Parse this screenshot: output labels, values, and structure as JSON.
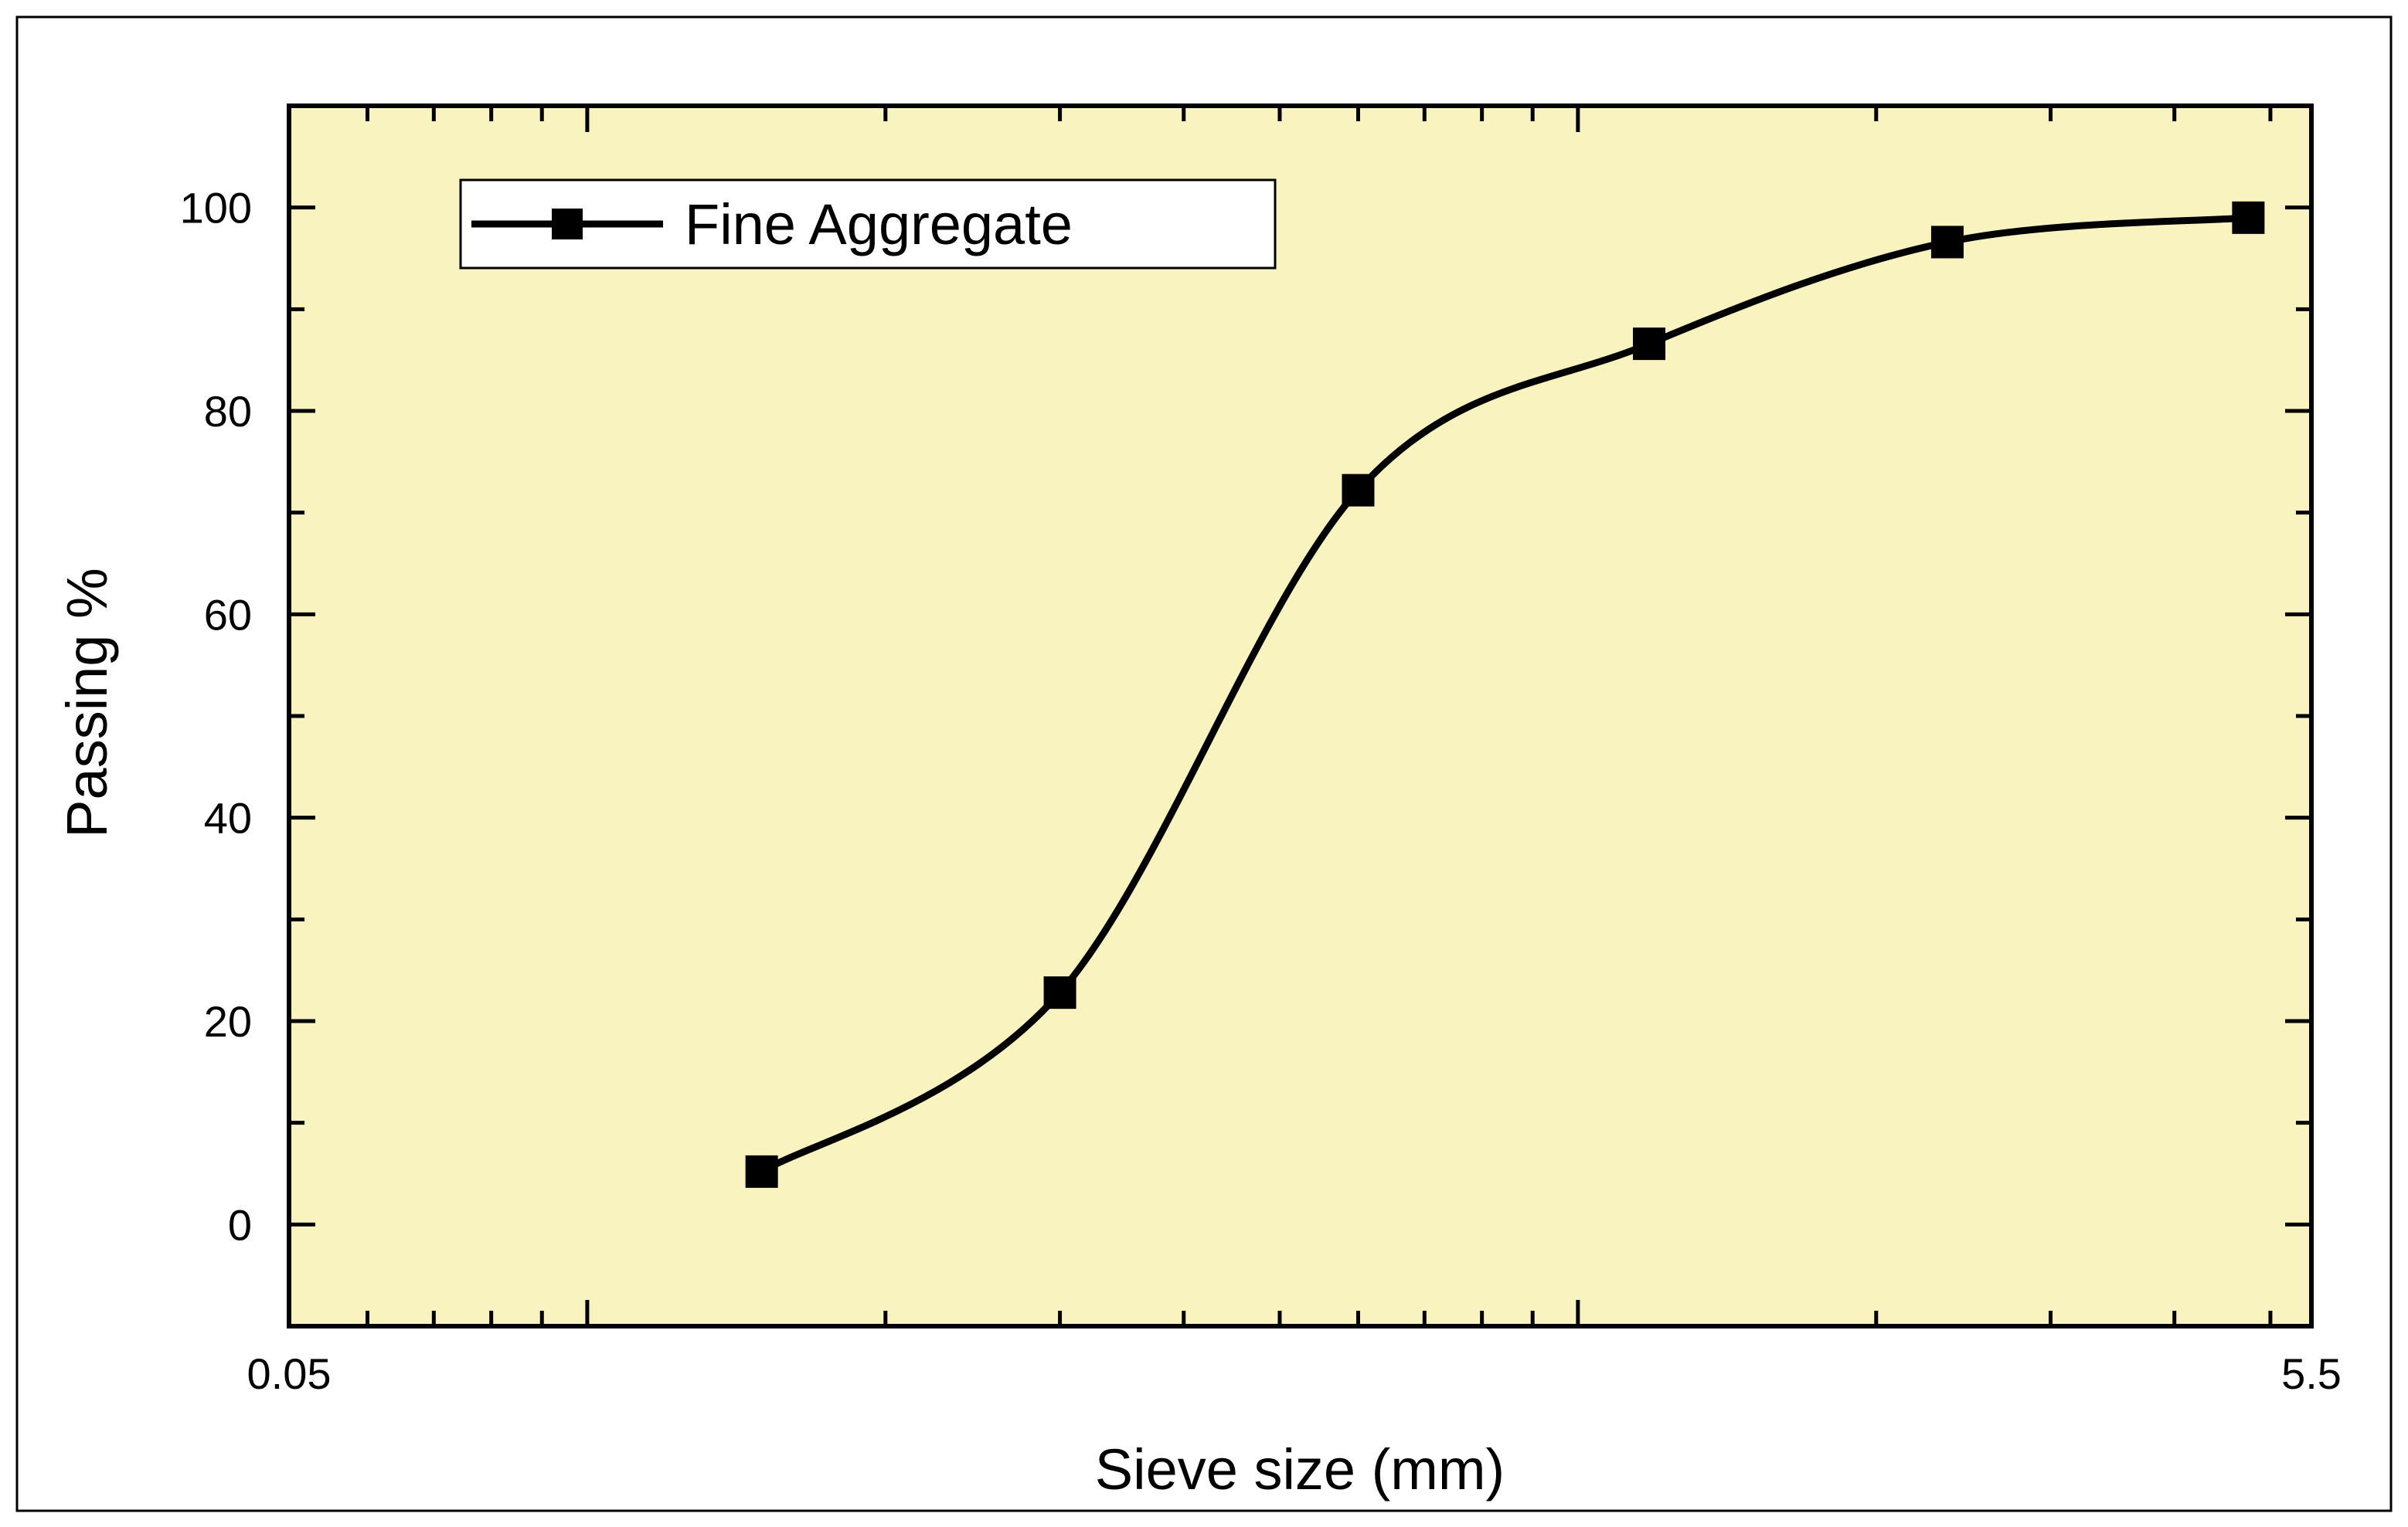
{
  "chart_data": {
    "type": "line",
    "xscale": "log",
    "xlabel": "Sieve size (mm)",
    "ylabel": "Passing %",
    "xlim": [
      0.05,
      5.5
    ],
    "ylim": [
      -10,
      110
    ],
    "x_tick_labels": [
      "0.05",
      "5.5"
    ],
    "y_ticks": [
      0,
      20,
      40,
      60,
      80,
      100
    ],
    "grid": false,
    "legend_position": "top-left",
    "background_color": "#f9f3bf",
    "series": [
      {
        "name": "Fine Aggregate",
        "marker": "square",
        "color": "#000000",
        "smooth": true,
        "x": [
          0.15,
          0.3,
          0.6,
          1.18,
          2.36,
          4.75
        ],
        "y": [
          5.2,
          22.8,
          72.2,
          86.6,
          96.6,
          99.0
        ]
      }
    ]
  }
}
